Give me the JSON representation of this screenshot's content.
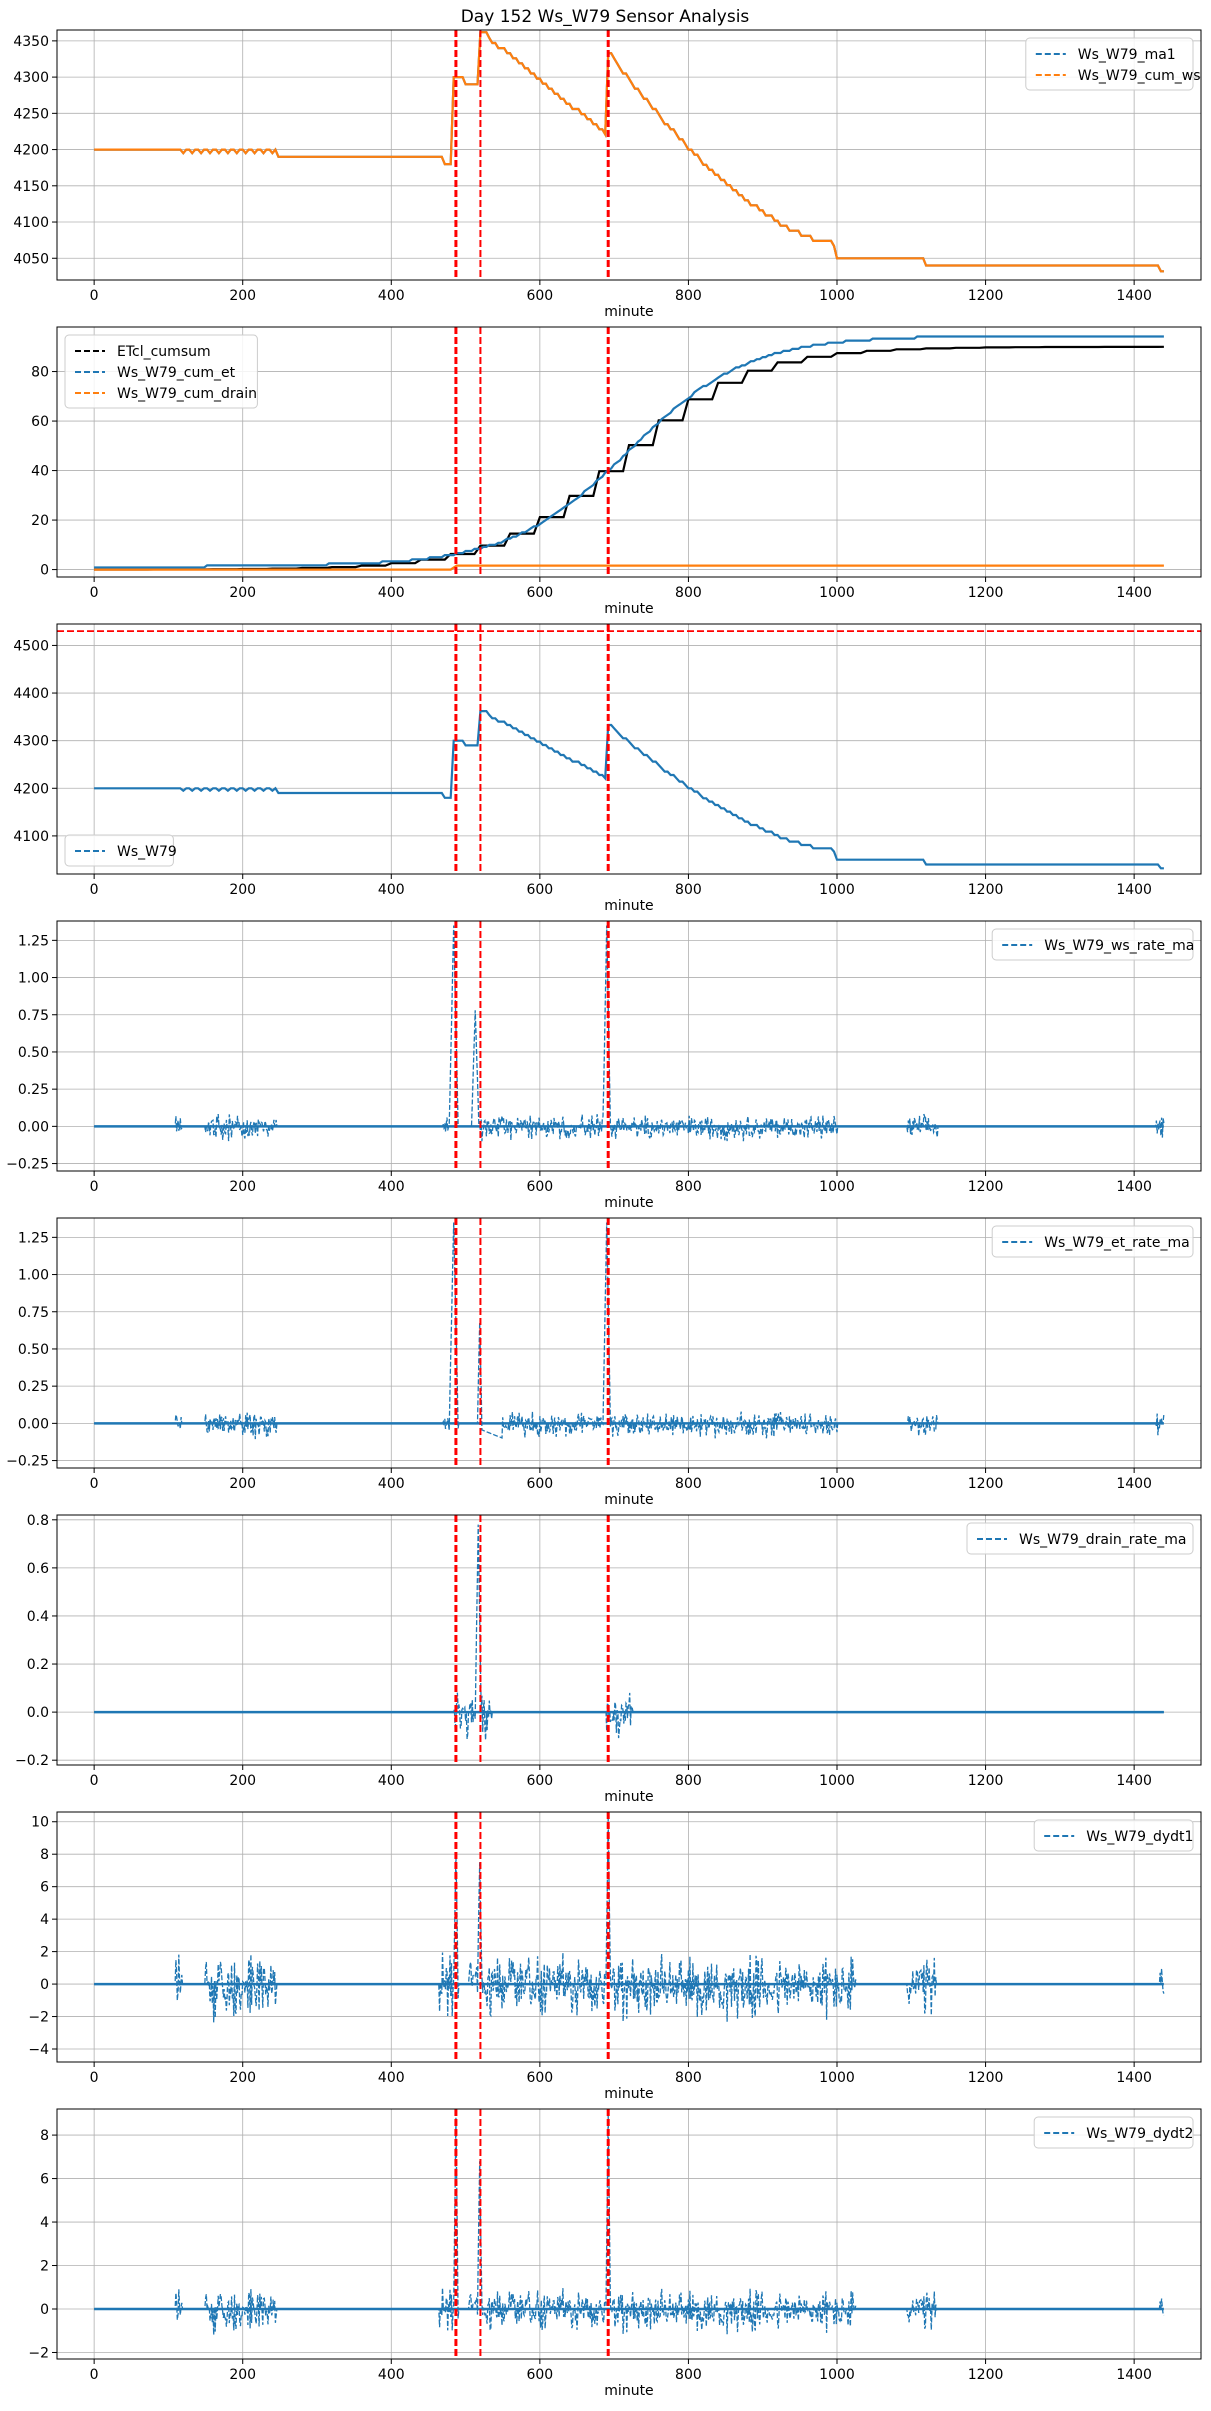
{
  "figure_title": "Day 152 Ws_W79 Sensor Analysis",
  "colors": {
    "blue": "#1f77b4",
    "orange": "#ff7f0e",
    "black": "#000000",
    "red": "#ff0000",
    "grid": "#b0b0b0"
  },
  "chart_data": [
    {
      "type": "line",
      "xlabel": "minute",
      "xlim": [
        -50,
        1490
      ],
      "ylim": [
        4020,
        4365
      ],
      "xticks": [
        0,
        200,
        400,
        600,
        800,
        1000,
        1200,
        1400
      ],
      "yticks": [
        4050,
        4100,
        4150,
        4200,
        4250,
        4300,
        4350
      ],
      "vlines": [
        {
          "x": 487,
          "w": 3
        },
        {
          "x": 520,
          "w": 2
        },
        {
          "x": 692,
          "w": 3
        }
      ],
      "legend_loc": "upper right",
      "series": [
        {
          "name": "Ws_W79_ma1",
          "color": "#1f77b4",
          "kind": "ws"
        },
        {
          "name": "Ws_W79_cum_ws",
          "color": "#ff7f0e",
          "kind": "ws"
        }
      ]
    },
    {
      "type": "line",
      "xlabel": "minute",
      "xlim": [
        -50,
        1490
      ],
      "ylim": [
        -3,
        98
      ],
      "xticks": [
        0,
        200,
        400,
        600,
        800,
        1000,
        1200,
        1400
      ],
      "yticks": [
        0,
        20,
        40,
        60,
        80
      ],
      "vlines": [
        {
          "x": 487,
          "w": 3
        },
        {
          "x": 520,
          "w": 2
        },
        {
          "x": 692,
          "w": 3
        }
      ],
      "legend_loc": "upper left",
      "series": [
        {
          "name": "ETcl_cumsum",
          "color": "#000000",
          "kind": "etcl"
        },
        {
          "name": "Ws_W79_cum_et",
          "color": "#1f77b4",
          "kind": "cumet"
        },
        {
          "name": "Ws_W79_cum_drain",
          "color": "#ff7f0e",
          "kind": "drain"
        }
      ]
    },
    {
      "type": "line",
      "xlabel": "minute",
      "xlim": [
        -50,
        1490
      ],
      "ylim": [
        4020,
        4545
      ],
      "xticks": [
        0,
        200,
        400,
        600,
        800,
        1000,
        1200,
        1400
      ],
      "yticks": [
        4100,
        4200,
        4300,
        4400,
        4500
      ],
      "vlines": [
        {
          "x": 487,
          "w": 3
        },
        {
          "x": 520,
          "w": 2
        },
        {
          "x": 692,
          "w": 3
        }
      ],
      "hline": 4530,
      "legend_loc": "lower left",
      "series": [
        {
          "name": "Ws_W79",
          "color": "#1f77b4",
          "kind": "ws"
        }
      ]
    },
    {
      "type": "line",
      "xlabel": "minute",
      "xlim": [
        -50,
        1490
      ],
      "ylim": [
        -0.3,
        1.38
      ],
      "xticks": [
        0,
        200,
        400,
        600,
        800,
        1000,
        1200,
        1400
      ],
      "yticks": [
        -0.25,
        0.0,
        0.25,
        0.5,
        0.75,
        1.0,
        1.25
      ],
      "ytick_labels": [
        "−0.25",
        "0.00",
        "0.25",
        "0.50",
        "0.75",
        "1.00",
        "1.25"
      ],
      "vlines": [
        {
          "x": 487,
          "w": 3
        },
        {
          "x": 520,
          "w": 2
        },
        {
          "x": 692,
          "w": 3
        }
      ],
      "legend_loc": "upper right",
      "series": [
        {
          "name": "Ws_W79_ws_rate_ma",
          "color": "#1f77b4",
          "kind": "rate"
        }
      ]
    },
    {
      "type": "line",
      "xlabel": "minute",
      "xlim": [
        -50,
        1490
      ],
      "ylim": [
        -0.3,
        1.38
      ],
      "xticks": [
        0,
        200,
        400,
        600,
        800,
        1000,
        1200,
        1400
      ],
      "yticks": [
        -0.25,
        0.0,
        0.25,
        0.5,
        0.75,
        1.0,
        1.25
      ],
      "ytick_labels": [
        "−0.25",
        "0.00",
        "0.25",
        "0.50",
        "0.75",
        "1.00",
        "1.25"
      ],
      "vlines": [
        {
          "x": 487,
          "w": 3
        },
        {
          "x": 520,
          "w": 2
        },
        {
          "x": 692,
          "w": 3
        }
      ],
      "legend_loc": "upper right",
      "series": [
        {
          "name": "Ws_W79_et_rate_ma",
          "color": "#1f77b4",
          "kind": "etrate"
        }
      ]
    },
    {
      "type": "line",
      "xlabel": "minute",
      "xlim": [
        -50,
        1490
      ],
      "ylim": [
        -0.22,
        0.82
      ],
      "xticks": [
        0,
        200,
        400,
        600,
        800,
        1000,
        1200,
        1400
      ],
      "yticks": [
        -0.2,
        0.0,
        0.2,
        0.4,
        0.6,
        0.8
      ],
      "ytick_labels": [
        "−0.2",
        "0.0",
        "0.2",
        "0.4",
        "0.6",
        "0.8"
      ],
      "vlines": [
        {
          "x": 487,
          "w": 3
        },
        {
          "x": 520,
          "w": 2
        },
        {
          "x": 692,
          "w": 3
        }
      ],
      "legend_loc": "upper right",
      "series": [
        {
          "name": "Ws_W79_drain_rate_ma",
          "color": "#1f77b4",
          "kind": "drainrate"
        }
      ]
    },
    {
      "type": "line",
      "xlabel": "minute",
      "xlim": [
        -50,
        1490
      ],
      "ylim": [
        -4.8,
        10.6
      ],
      "xticks": [
        0,
        200,
        400,
        600,
        800,
        1000,
        1200,
        1400
      ],
      "yticks": [
        -4,
        -2,
        0,
        2,
        4,
        6,
        8,
        10
      ],
      "ytick_labels": [
        "−4",
        "−2",
        "0",
        "2",
        "4",
        "6",
        "8",
        "10"
      ],
      "vlines": [
        {
          "x": 487,
          "w": 3
        },
        {
          "x": 520,
          "w": 2
        },
        {
          "x": 692,
          "w": 3
        }
      ],
      "legend_loc": "upper right",
      "series": [
        {
          "name": "Ws_W79_dydt1",
          "color": "#1f77b4",
          "kind": "dydt1"
        }
      ]
    },
    {
      "type": "line",
      "xlabel": "minute",
      "xlim": [
        -50,
        1490
      ],
      "ylim": [
        -2.3,
        9.2
      ],
      "xticks": [
        0,
        200,
        400,
        600,
        800,
        1000,
        1200,
        1400
      ],
      "yticks": [
        -2,
        0,
        2,
        4,
        6,
        8
      ],
      "ytick_labels": [
        "−2",
        "0",
        "2",
        "4",
        "6",
        "8"
      ],
      "vlines": [
        {
          "x": 487,
          "w": 3
        },
        {
          "x": 520,
          "w": 2
        },
        {
          "x": 692,
          "w": 3
        }
      ],
      "legend_loc": "upper right",
      "series": [
        {
          "name": "Ws_W79_dydt2",
          "color": "#1f77b4",
          "kind": "dydt2"
        }
      ]
    }
  ]
}
